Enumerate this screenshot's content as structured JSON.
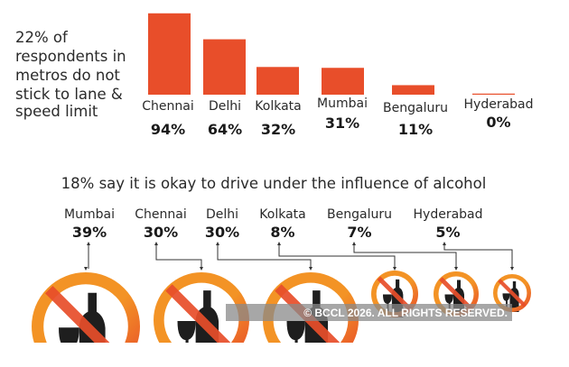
{
  "colors": {
    "bar": "#e84e2a",
    "ring_outer": "#f39325",
    "ring_inner": "#e84e2a",
    "icon": "#1e1e1e",
    "text": "#2a2a2a"
  },
  "chart_data": [
    {
      "type": "bar",
      "title_lines": [
        "22% of",
        "respondents in",
        "metros do not",
        "stick to lane &",
        "speed limit"
      ],
      "categories": [
        "Chennai",
        "Delhi",
        "Kolkata",
        "Mumbai",
        "Bengaluru",
        "Hyderabad"
      ],
      "values": [
        94,
        64,
        32,
        31,
        11,
        0
      ],
      "value_labels": [
        "94%",
        "64%",
        "32%",
        "31%",
        "11%",
        "0%"
      ],
      "unit": "%",
      "grid": false
    },
    {
      "type": "pictograph",
      "title": "18% say it is okay to drive under the influence of alcohol",
      "categories": [
        "Mumbai",
        "Chennai",
        "Delhi",
        "Kolkata",
        "Bengaluru",
        "Hyderabad"
      ],
      "values": [
        39,
        30,
        30,
        8,
        7,
        5
      ],
      "value_labels": [
        "39%",
        "30%",
        "30%",
        "8%",
        "7%",
        "5%"
      ],
      "icon": "no-alcohol-icon",
      "unit": "%"
    }
  ],
  "watermark": "© BCCL 2026. ALL RIGHTS RESERVED."
}
